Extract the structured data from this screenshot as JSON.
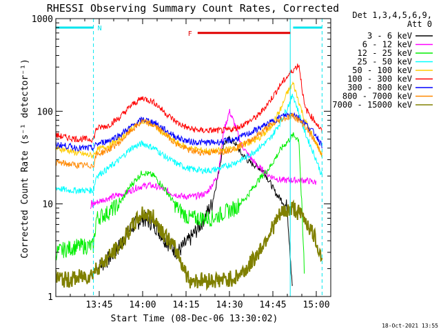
{
  "chart_data": {
    "type": "line",
    "title": "RHESSI Observing Summary Count Rates, Corrected",
    "xlabel": "Start Time (08-Dec-06 13:30:02)",
    "ylabel": "Corrected Count Rate (s⁻¹ detector⁻¹)",
    "y_scale": "log",
    "ylim": [
      1,
      1000
    ],
    "xlim": [
      0,
      95
    ],
    "x_unit": "minutes after 13:30:02",
    "x_ticks": [
      {
        "x": 15,
        "label": "13:45"
      },
      {
        "x": 30,
        "label": "14:00"
      },
      {
        "x": 45,
        "label": "14:15"
      },
      {
        "x": 60,
        "label": "14:30"
      },
      {
        "x": 75,
        "label": "14:45"
      },
      {
        "x": 90,
        "label": "15:00"
      }
    ],
    "y_ticks": [
      {
        "y": 1,
        "label": "1"
      },
      {
        "y": 10,
        "label": "10"
      },
      {
        "y": 100,
        "label": "100"
      },
      {
        "y": 1000,
        "label": "1000"
      }
    ],
    "legend": {
      "position": "right",
      "header_line1": "Det 1,3,4,5,6,9,",
      "header_line2": "Att 0"
    },
    "footer_timestamp": "18-Oct-2021 13:55",
    "annotations": {
      "night_marker": {
        "label": "N",
        "x_start": 0,
        "x_end": 13,
        "y": 800,
        "color": "#00e5ee"
      },
      "night_marker_right": {
        "x_start": 82,
        "x_end": 92,
        "y": 800,
        "color": "#00e5ee"
      },
      "flare_marker": {
        "label": "F",
        "x_start": 49,
        "x_end": 81,
        "y": 700,
        "color": "#e00000"
      },
      "vertical_lines": [
        {
          "x": 13,
          "style": "dashed",
          "color": "#00e5ee"
        },
        {
          "x": 81,
          "style": "solid",
          "color": "#00e5ee"
        },
        {
          "x": 92,
          "style": "dashed",
          "color": "#00e5ee"
        }
      ]
    },
    "series": [
      {
        "name": "3 - 6 keV",
        "color": "#000000",
        "width": 1,
        "x": [
          14,
          18,
          22,
          26,
          30,
          34,
          38,
          42,
          46,
          50,
          54,
          56,
          58,
          60,
          62,
          64,
          67,
          70,
          72,
          74,
          76,
          78,
          80,
          82
        ],
        "values": [
          2,
          2.5,
          3.5,
          5.5,
          7,
          6,
          4,
          3,
          4,
          6,
          10,
          20,
          45,
          50,
          45,
          35,
          28,
          25,
          22,
          17,
          13,
          11,
          9,
          1
        ]
      },
      {
        "name": "6 - 12 keV",
        "color": "#ff00ff",
        "width": 1,
        "x": [
          12,
          13,
          16,
          20,
          24,
          28,
          32,
          36,
          40,
          44,
          48,
          52,
          56,
          58,
          60,
          62,
          64,
          66,
          70,
          74,
          78,
          82,
          86,
          90
        ],
        "values": [
          9,
          10,
          11,
          12,
          13,
          15,
          16,
          15,
          13,
          12,
          12,
          13,
          20,
          60,
          100,
          70,
          45,
          35,
          25,
          20,
          18,
          18,
          18,
          17
        ]
      },
      {
        "name": "12 - 25 keV",
        "color": "#00ee00",
        "width": 1,
        "x": [
          0,
          3,
          6,
          10,
          13,
          14,
          18,
          22,
          26,
          30,
          34,
          38,
          42,
          46,
          50,
          54,
          58,
          62,
          66,
          70,
          74,
          78,
          82,
          84,
          86
        ],
        "values": [
          3,
          3.2,
          3.4,
          3.5,
          3.5,
          7,
          8,
          10,
          16,
          22,
          20,
          14,
          9,
          7,
          7,
          7,
          8,
          9,
          12,
          18,
          25,
          40,
          55,
          50,
          1.5
        ]
      },
      {
        "name": "25 - 50 keV",
        "color": "#00ffff",
        "width": 1,
        "x": [
          0,
          4,
          8,
          12,
          13,
          14,
          18,
          22,
          26,
          30,
          34,
          38,
          42,
          46,
          50,
          54,
          58,
          62,
          66,
          70,
          74,
          78,
          80,
          82,
          86,
          90,
          92
        ],
        "values": [
          15,
          14,
          14,
          14,
          14,
          20,
          24,
          30,
          40,
          45,
          40,
          32,
          27,
          24,
          23,
          23,
          25,
          28,
          32,
          40,
          50,
          80,
          110,
          150,
          60,
          30,
          20
        ]
      },
      {
        "name": "50 - 100 keV",
        "color": "#ffcc00",
        "width": 1,
        "x": [
          0,
          4,
          8,
          13,
          14,
          18,
          22,
          26,
          30,
          34,
          38,
          42,
          46,
          50,
          54,
          58,
          62,
          66,
          70,
          74,
          78,
          80,
          82,
          86,
          90,
          92
        ],
        "values": [
          40,
          38,
          35,
          33,
          38,
          42,
          50,
          65,
          80,
          70,
          55,
          45,
          40,
          38,
          37,
          38,
          40,
          45,
          50,
          65,
          110,
          160,
          200,
          80,
          45,
          33
        ]
      },
      {
        "name": "100 - 300 keV",
        "color": "#ff0000",
        "width": 1,
        "x": [
          0,
          4,
          8,
          13,
          14,
          18,
          22,
          26,
          30,
          34,
          38,
          42,
          46,
          50,
          54,
          58,
          62,
          66,
          70,
          74,
          78,
          82,
          84,
          86,
          88,
          90,
          92
        ],
        "values": [
          55,
          52,
          50,
          50,
          65,
          70,
          85,
          115,
          140,
          125,
          95,
          75,
          65,
          62,
          62,
          62,
          65,
          75,
          90,
          130,
          200,
          280,
          320,
          110,
          90,
          75,
          60
        ]
      },
      {
        "name": "300 - 800 keV",
        "color": "#0000ff",
        "width": 1,
        "x": [
          0,
          4,
          8,
          13,
          14,
          18,
          22,
          26,
          30,
          34,
          38,
          42,
          46,
          50,
          54,
          58,
          62,
          66,
          70,
          74,
          78,
          82,
          86,
          90,
          92
        ],
        "values": [
          44,
          42,
          40,
          40,
          44,
          48,
          55,
          68,
          82,
          76,
          62,
          52,
          47,
          46,
          46,
          47,
          50,
          56,
          65,
          75,
          88,
          95,
          75,
          55,
          42
        ]
      },
      {
        "name": "800 - 7000 keV",
        "color": "#ff8800",
        "width": 1,
        "x": [
          0,
          4,
          8,
          13,
          14,
          18,
          22,
          26,
          30,
          34,
          38,
          42,
          46,
          50,
          54,
          58,
          62,
          66,
          70,
          74,
          78,
          82,
          86,
          90,
          92
        ],
        "values": [
          28,
          27,
          26,
          26,
          34,
          38,
          46,
          62,
          78,
          70,
          56,
          44,
          38,
          36,
          36,
          37,
          40,
          46,
          56,
          70,
          82,
          90,
          70,
          45,
          35
        ]
      },
      {
        "name": "7000 - 15000 keV",
        "color": "#808000",
        "width": 2,
        "x": [
          0,
          4,
          8,
          12,
          14,
          18,
          22,
          26,
          30,
          34,
          38,
          42,
          46,
          50,
          54,
          58,
          62,
          66,
          70,
          74,
          78,
          82,
          86,
          90,
          92
        ],
        "values": [
          1.6,
          1.5,
          1.6,
          1.7,
          2,
          2.6,
          3.5,
          5.5,
          8,
          7,
          4.5,
          3,
          1.5,
          1.5,
          1.5,
          1.5,
          1.6,
          2,
          3,
          5,
          8,
          9,
          7,
          4,
          2.5
        ]
      }
    ]
  }
}
